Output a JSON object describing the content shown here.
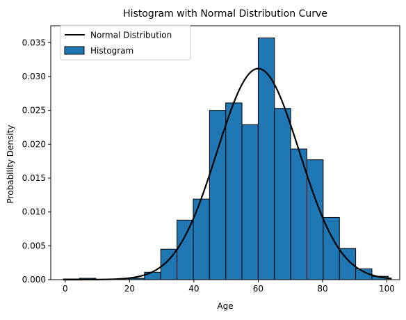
{
  "chart_data": {
    "type": "bar",
    "title": "Histogram with Normal Distribution Curve",
    "xlabel": "Age",
    "ylabel": "Probability Density",
    "xlim": [
      -4.5,
      104
    ],
    "ylim": [
      0,
      0.0375
    ],
    "grid": false,
    "legend_position": "top-left",
    "x_ticks": [
      {
        "value": 0,
        "label": "0"
      },
      {
        "value": 20,
        "label": "20"
      },
      {
        "value": 40,
        "label": "40"
      },
      {
        "value": 60,
        "label": "60"
      },
      {
        "value": 80,
        "label": "80"
      },
      {
        "value": 100,
        "label": "100"
      }
    ],
    "y_ticks": [
      {
        "value": 0,
        "label": "0.000"
      },
      {
        "value": 0.005,
        "label": "0.005"
      },
      {
        "value": 0.01,
        "label": "0.010"
      },
      {
        "value": 0.015,
        "label": "0.015"
      },
      {
        "value": 0.02,
        "label": "0.020"
      },
      {
        "value": 0.025,
        "label": "0.025"
      },
      {
        "value": 0.03,
        "label": "0.030"
      },
      {
        "value": 0.035,
        "label": "0.035"
      }
    ],
    "histogram": {
      "name": "Histogram",
      "color": "#1f77b4",
      "edge_color": "#000000",
      "bin_edges": [
        -0.6,
        4.45,
        9.5,
        14.55,
        19.6,
        24.65,
        29.7,
        34.75,
        39.8,
        44.85,
        49.9,
        54.95,
        60.0,
        65.05,
        70.1,
        75.15,
        80.2,
        85.25,
        90.3,
        95.35
      ],
      "densities": [
        0.0001,
        0.0002,
        0.0,
        0.0,
        0.0002,
        0.0011,
        0.0045,
        0.0088,
        0.0119,
        0.025,
        0.0261,
        0.0229,
        0.0357,
        0.0253,
        0.0193,
        0.0177,
        0.0092,
        0.0046,
        0.0016,
        0.0005
      ]
    },
    "normal_curve": {
      "name": "Normal Distribution",
      "color": "#000000",
      "mean": 60,
      "std": 12.8,
      "x_range": [
        -0.6,
        101.5
      ]
    }
  }
}
